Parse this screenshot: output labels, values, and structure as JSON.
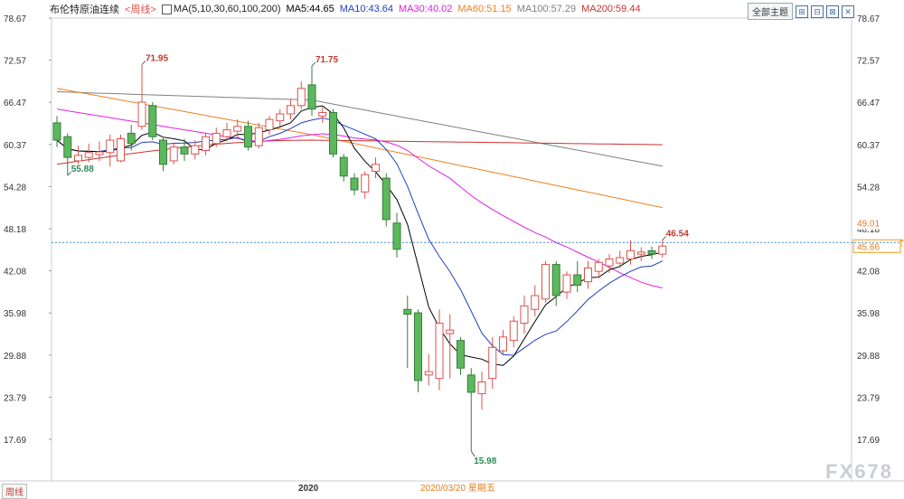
{
  "header": {
    "instrument": "布伦特原油连续",
    "period": "<周线>",
    "ma_label": "MA(5,10,30,60,100,200)",
    "ma_values": [
      {
        "text": "MA5:44.65",
        "color": "#000000"
      },
      {
        "text": "MA10:43.64",
        "color": "#1f3fbf"
      },
      {
        "text": "MA30:40.02",
        "color": "#e020e0"
      },
      {
        "text": "MA60:51.15",
        "color": "#f08020"
      },
      {
        "text": "MA100:57.29",
        "color": "#808080"
      },
      {
        "text": "MA200:59.44",
        "color": "#d03030"
      }
    ],
    "theme_button": "全部主题",
    "icon_buttons": [
      "⊞",
      "⊟",
      "⊠",
      "✕"
    ]
  },
  "footer": {
    "period_button": "周线",
    "year_label": "2020",
    "date_label": "2020/03/20 星期五"
  },
  "watermark": "FX678",
  "colors": {
    "up": "#d9534f",
    "down": "#5cb85c",
    "ma5": "#000000",
    "ma10": "#1f3fbf",
    "ma30": "#e020e0",
    "ma60": "#f08020",
    "ma100": "#808080",
    "ma200": "#d03030",
    "last_price_line": "#3a8fd0"
  },
  "chart_data": {
    "type": "candlestick",
    "y_ticks": [
      "78.67",
      "72.57",
      "66.47",
      "60.37",
      "54.28",
      "48.18",
      "42.08",
      "35.98",
      "29.88",
      "23.79",
      "17.69"
    ],
    "y_tick_values": [
      78.67,
      72.57,
      66.47,
      60.37,
      54.28,
      48.18,
      42.08,
      35.98,
      29.88,
      23.79,
      17.69
    ],
    "ylim": [
      14.0,
      80.0
    ],
    "right_price_labels": [
      {
        "text": "49.01",
        "value": 49.01,
        "color": "#e67e22"
      },
      {
        "text": "45.66",
        "value": 45.66,
        "color": "#e67e22"
      }
    ],
    "last_price": 45.66,
    "annotations": [
      {
        "text": "71.95",
        "value": 71.95,
        "index": 8,
        "color": "#c0392b"
      },
      {
        "text": "71.75",
        "value": 71.75,
        "index": 24,
        "color": "#c0392b"
      },
      {
        "text": "55.88",
        "value": 55.88,
        "index": 1,
        "color": "#2e8b57"
      },
      {
        "text": "15.98",
        "value": 15.98,
        "index": 39,
        "color": "#2e8b57"
      },
      {
        "text": "46.54",
        "value": 46.54,
        "index": 57,
        "color": "#c0392b"
      }
    ],
    "candles": [
      {
        "o": 63.5,
        "c": 61.0,
        "h": 64.5,
        "l": 60.0
      },
      {
        "o": 61.5,
        "c": 58.5,
        "h": 62.0,
        "l": 55.9
      },
      {
        "o": 58.0,
        "c": 58.8,
        "h": 60.2,
        "l": 57.5
      },
      {
        "o": 58.5,
        "c": 59.2,
        "h": 60.5,
        "l": 57.8
      },
      {
        "o": 58.9,
        "c": 59.3,
        "h": 60.8,
        "l": 58.0
      },
      {
        "o": 59.2,
        "c": 61.0,
        "h": 61.8,
        "l": 57.2
      },
      {
        "o": 58.0,
        "c": 61.2,
        "h": 61.8,
        "l": 57.8
      },
      {
        "o": 62.0,
        "c": 60.5,
        "h": 63.2,
        "l": 59.5
      },
      {
        "o": 63.0,
        "c": 66.5,
        "h": 71.95,
        "l": 62.5
      },
      {
        "o": 66.0,
        "c": 61.5,
        "h": 66.5,
        "l": 61.0
      },
      {
        "o": 61.0,
        "c": 57.5,
        "h": 61.5,
        "l": 56.5
      },
      {
        "o": 58.0,
        "c": 60.0,
        "h": 60.5,
        "l": 57.5
      },
      {
        "o": 60.0,
        "c": 59.0,
        "h": 61.2,
        "l": 58.0
      },
      {
        "o": 59.0,
        "c": 60.2,
        "h": 61.0,
        "l": 58.2
      },
      {
        "o": 59.5,
        "c": 61.5,
        "h": 62.0,
        "l": 58.8
      },
      {
        "o": 60.5,
        "c": 62.0,
        "h": 62.8,
        "l": 60.0
      },
      {
        "o": 61.5,
        "c": 62.5,
        "h": 63.5,
        "l": 60.8
      },
      {
        "o": 62.3,
        "c": 63.0,
        "h": 64.0,
        "l": 61.5
      },
      {
        "o": 63.0,
        "c": 60.0,
        "h": 63.8,
        "l": 59.5
      },
      {
        "o": 60.2,
        "c": 62.8,
        "h": 63.5,
        "l": 59.8
      },
      {
        "o": 62.5,
        "c": 64.0,
        "h": 64.5,
        "l": 61.8
      },
      {
        "o": 63.8,
        "c": 64.8,
        "h": 65.5,
        "l": 63.0
      },
      {
        "o": 64.8,
        "c": 66.0,
        "h": 67.0,
        "l": 64.0
      },
      {
        "o": 66.0,
        "c": 68.5,
        "h": 69.5,
        "l": 65.5
      },
      {
        "o": 69.0,
        "c": 65.5,
        "h": 71.75,
        "l": 64.5
      },
      {
        "o": 64.5,
        "c": 65.0,
        "h": 65.8,
        "l": 63.5
      },
      {
        "o": 65.0,
        "c": 59.0,
        "h": 65.5,
        "l": 58.5
      },
      {
        "o": 58.5,
        "c": 55.8,
        "h": 59.0,
        "l": 55.0
      },
      {
        "o": 55.5,
        "c": 53.8,
        "h": 56.2,
        "l": 53.0
      },
      {
        "o": 53.5,
        "c": 56.0,
        "h": 56.5,
        "l": 52.5
      },
      {
        "o": 56.5,
        "c": 57.5,
        "h": 58.5,
        "l": 55.5
      },
      {
        "o": 55.5,
        "c": 49.5,
        "h": 56.2,
        "l": 48.5
      },
      {
        "o": 49.0,
        "c": 45.2,
        "h": 50.5,
        "l": 44.0
      },
      {
        "o": 36.5,
        "c": 35.8,
        "h": 38.5,
        "l": 28.0
      },
      {
        "o": 36.0,
        "c": 26.2,
        "h": 36.5,
        "l": 24.5
      },
      {
        "o": 27.0,
        "c": 27.5,
        "h": 30.0,
        "l": 25.5
      },
      {
        "o": 26.5,
        "c": 34.5,
        "h": 36.5,
        "l": 24.8
      },
      {
        "o": 33.0,
        "c": 33.5,
        "h": 35.8,
        "l": 26.5
      },
      {
        "o": 32.0,
        "c": 28.0,
        "h": 32.5,
        "l": 27.0
      },
      {
        "o": 27.0,
        "c": 24.5,
        "h": 28.0,
        "l": 15.98
      },
      {
        "o": 24.3,
        "c": 26.0,
        "h": 27.5,
        "l": 22.0
      },
      {
        "o": 26.5,
        "c": 31.0,
        "h": 32.5,
        "l": 25.0
      },
      {
        "o": 30.5,
        "c": 32.5,
        "h": 33.5,
        "l": 30.0
      },
      {
        "o": 32.0,
        "c": 34.8,
        "h": 35.5,
        "l": 31.0
      },
      {
        "o": 34.5,
        "c": 37.0,
        "h": 38.5,
        "l": 33.0
      },
      {
        "o": 36.5,
        "c": 38.5,
        "h": 40.0,
        "l": 35.5
      },
      {
        "o": 38.0,
        "c": 43.0,
        "h": 43.5,
        "l": 37.5
      },
      {
        "o": 43.0,
        "c": 38.5,
        "h": 43.5,
        "l": 37.0
      },
      {
        "o": 39.0,
        "c": 41.5,
        "h": 42.0,
        "l": 38.0
      },
      {
        "o": 41.5,
        "c": 40.0,
        "h": 43.5,
        "l": 39.0
      },
      {
        "o": 40.5,
        "c": 42.5,
        "h": 43.5,
        "l": 39.5
      },
      {
        "o": 42.0,
        "c": 43.3,
        "h": 43.8,
        "l": 41.0
      },
      {
        "o": 42.8,
        "c": 43.8,
        "h": 44.5,
        "l": 41.8
      },
      {
        "o": 43.2,
        "c": 44.0,
        "h": 45.0,
        "l": 42.5
      },
      {
        "o": 43.8,
        "c": 45.0,
        "h": 46.5,
        "l": 43.0
      },
      {
        "o": 44.5,
        "c": 44.8,
        "h": 45.5,
        "l": 43.5
      },
      {
        "o": 45.0,
        "c": 44.5,
        "h": 45.6,
        "l": 43.8
      },
      {
        "o": 44.5,
        "c": 45.66,
        "h": 46.54,
        "l": 44.0
      }
    ]
  }
}
